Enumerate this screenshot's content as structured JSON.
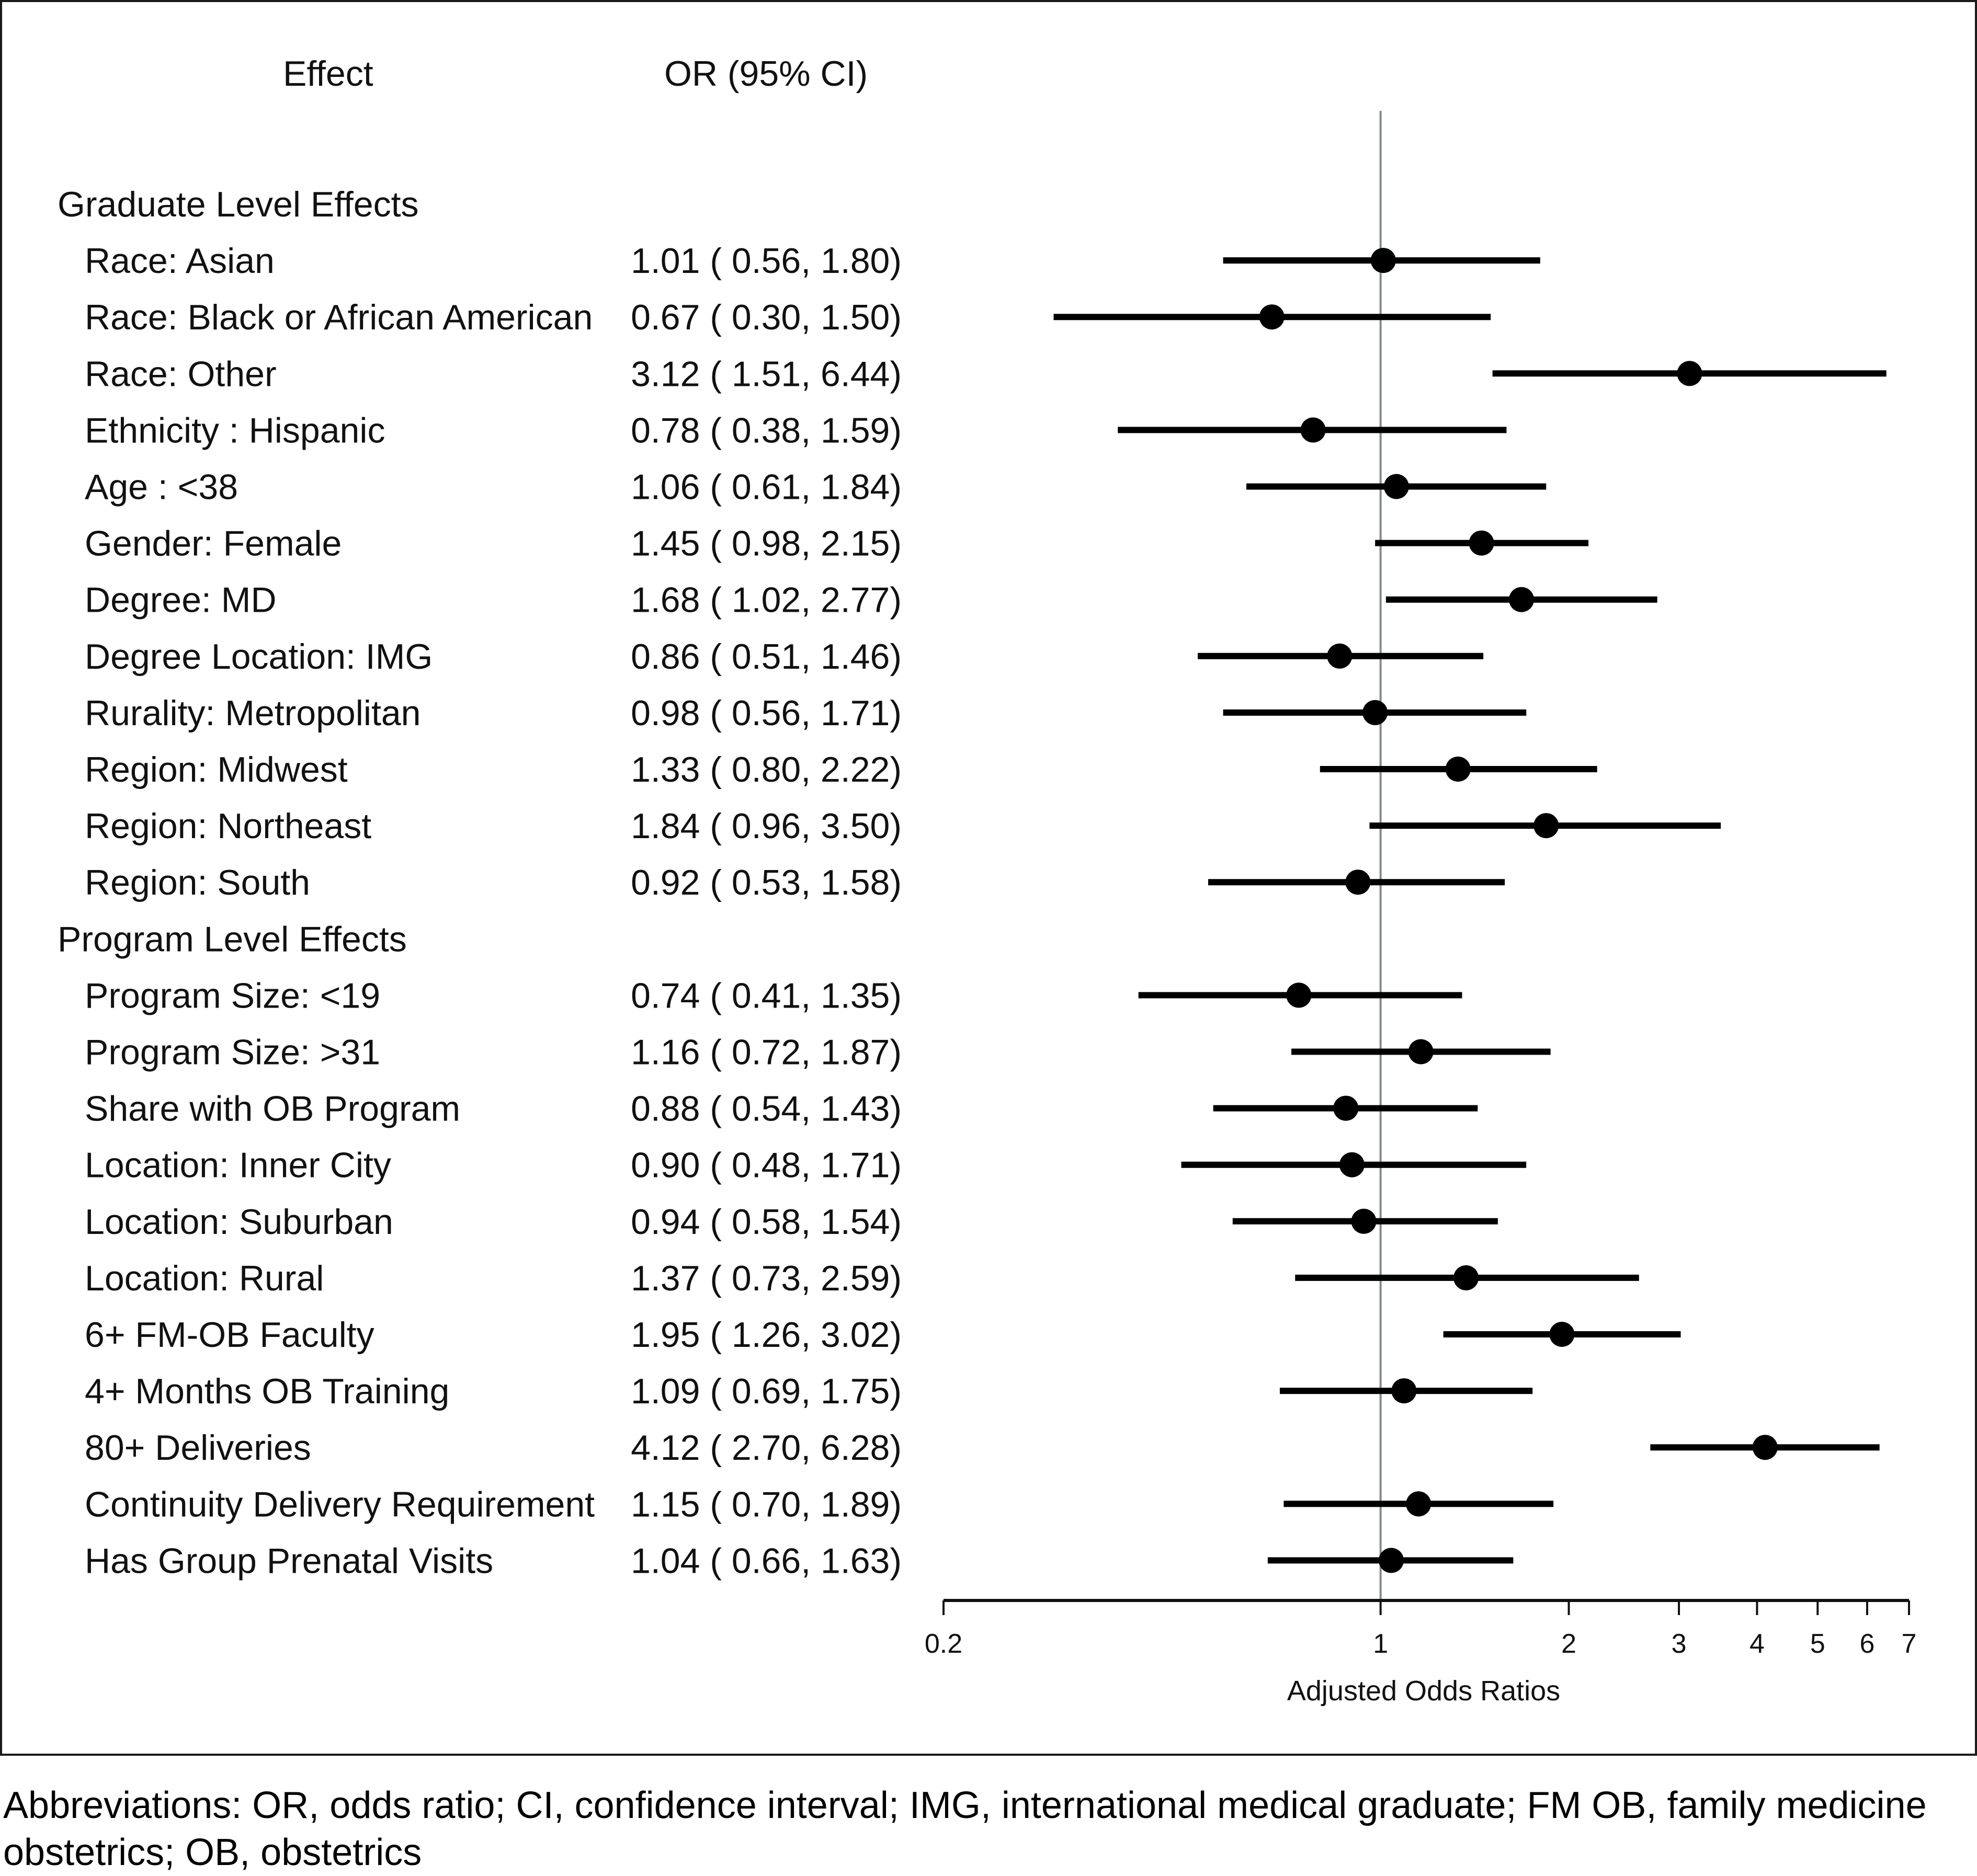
{
  "chart_data": {
    "type": "forest",
    "title": "",
    "column_headers": {
      "effect": "Effect",
      "or_ci": "OR (95% CI)"
    },
    "xlabel": "Adjusted Odds Ratios",
    "xscale": "log",
    "xlim": [
      0.2,
      7
    ],
    "xticks": [
      0.2,
      1,
      2,
      3,
      4,
      5,
      6,
      7
    ],
    "xtick_labels": [
      "0.2",
      "1",
      "2",
      "3",
      "4",
      "5",
      "6",
      "7"
    ],
    "reference_line": 1,
    "groups": [
      {
        "name": "Graduate Level Effects",
        "rows": [
          {
            "label": "Race: Asian",
            "or": 1.01,
            "lower": 0.56,
            "upper": 1.8,
            "text": "1.01 ( 0.56, 1.80)"
          },
          {
            "label": "Race: Black or African American",
            "or": 0.67,
            "lower": 0.3,
            "upper": 1.5,
            "text": "0.67 ( 0.30, 1.50)"
          },
          {
            "label": "Race: Other",
            "or": 3.12,
            "lower": 1.51,
            "upper": 6.44,
            "text": "3.12 ( 1.51, 6.44)"
          },
          {
            "label": "Ethnicity : Hispanic",
            "or": 0.78,
            "lower": 0.38,
            "upper": 1.59,
            "text": "0.78 ( 0.38, 1.59)"
          },
          {
            "label": "Age : <38",
            "or": 1.06,
            "lower": 0.61,
            "upper": 1.84,
            "text": "1.06 ( 0.61, 1.84)"
          },
          {
            "label": "Gender: Female",
            "or": 1.45,
            "lower": 0.98,
            "upper": 2.15,
            "text": "1.45 ( 0.98, 2.15)"
          },
          {
            "label": "Degree: MD",
            "or": 1.68,
            "lower": 1.02,
            "upper": 2.77,
            "text": "1.68 ( 1.02, 2.77)"
          },
          {
            "label": "Degree Location: IMG",
            "or": 0.86,
            "lower": 0.51,
            "upper": 1.46,
            "text": "0.86 ( 0.51, 1.46)"
          },
          {
            "label": "Rurality: Metropolitan",
            "or": 0.98,
            "lower": 0.56,
            "upper": 1.71,
            "text": "0.98 ( 0.56, 1.71)"
          },
          {
            "label": "Region: Midwest",
            "or": 1.33,
            "lower": 0.8,
            "upper": 2.22,
            "text": "1.33 ( 0.80, 2.22)"
          },
          {
            "label": "Region: Northeast",
            "or": 1.84,
            "lower": 0.96,
            "upper": 3.5,
            "text": "1.84 ( 0.96, 3.50)"
          },
          {
            "label": "Region: South",
            "or": 0.92,
            "lower": 0.53,
            "upper": 1.58,
            "text": "0.92 ( 0.53, 1.58)"
          }
        ]
      },
      {
        "name": "Program Level Effects",
        "rows": [
          {
            "label": "Program Size: <19",
            "or": 0.74,
            "lower": 0.41,
            "upper": 1.35,
            "text": "0.74 ( 0.41, 1.35)"
          },
          {
            "label": "Program Size: >31",
            "or": 1.16,
            "lower": 0.72,
            "upper": 1.87,
            "text": "1.16 ( 0.72, 1.87)"
          },
          {
            "label": "Share with OB Program",
            "or": 0.88,
            "lower": 0.54,
            "upper": 1.43,
            "text": "0.88 ( 0.54, 1.43)"
          },
          {
            "label": "Location: Inner City",
            "or": 0.9,
            "lower": 0.48,
            "upper": 1.71,
            "text": "0.90 ( 0.48, 1.71)"
          },
          {
            "label": "Location: Suburban",
            "or": 0.94,
            "lower": 0.58,
            "upper": 1.54,
            "text": "0.94 ( 0.58, 1.54)"
          },
          {
            "label": "Location: Rural",
            "or": 1.37,
            "lower": 0.73,
            "upper": 2.59,
            "text": "1.37 ( 0.73, 2.59)"
          },
          {
            "label": "6+ FM-OB Faculty",
            "or": 1.95,
            "lower": 1.26,
            "upper": 3.02,
            "text": "1.95 ( 1.26, 3.02)"
          },
          {
            "label": "4+ Months OB Training",
            "or": 1.09,
            "lower": 0.69,
            "upper": 1.75,
            "text": "1.09 ( 0.69, 1.75)"
          },
          {
            "label": "80+ Deliveries",
            "or": 4.12,
            "lower": 2.7,
            "upper": 6.28,
            "text": "4.12 ( 2.70, 6.28)"
          },
          {
            "label": "Continuity Delivery Requirement",
            "or": 1.15,
            "lower": 0.7,
            "upper": 1.89,
            "text": "1.15 ( 0.70, 1.89)"
          },
          {
            "label": "Has Group Prenatal Visits",
            "or": 1.04,
            "lower": 0.66,
            "upper": 1.63,
            "text": "1.04 ( 0.66, 1.63)"
          }
        ]
      }
    ],
    "colors": {
      "marks": "#000000",
      "reference_line": "#7f8c8c",
      "text": "#111111"
    }
  },
  "footnote": "Abbreviations: OR, odds ratio; CI, confidence interval; IMG, international medical graduate; FM OB, family medicine obstetrics; OB, obstetrics"
}
